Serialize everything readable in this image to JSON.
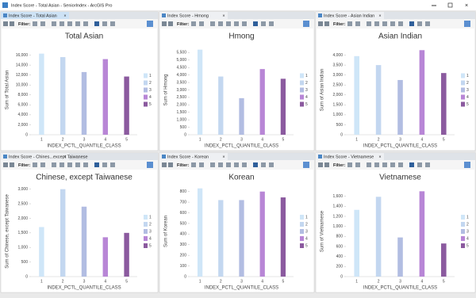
{
  "window": {
    "title": "Index Score - Total Asian - SeniorIndex - ArcGIS Pro"
  },
  "toolbar": {
    "filter_label": "Filter:"
  },
  "panes": [
    {
      "tab": "Index Score - Total Asian"
    },
    {
      "tab": "Index Score - Hmong"
    },
    {
      "tab": "Index Score - Asian Indian"
    },
    {
      "tab": "Index Score - Chines...except Taiwanese"
    },
    {
      "tab": "Index Score - Korean"
    },
    {
      "tab": "Index Score - Vietnamese"
    }
  ],
  "chart_data": [
    {
      "type": "bar",
      "title": "Total Asian",
      "x_label": "INDEX_PCTL_QUANTILE_CLASS",
      "y_label": "Sum of Total Asian",
      "categories": [
        "1",
        "2",
        "3",
        "4",
        "5"
      ],
      "values": [
        16300,
        15600,
        12600,
        15200,
        11700
      ],
      "colors": [
        "#cfe6f8",
        "#c3d7f0",
        "#b2bde2",
        "#b886d6",
        "#8b5a9f"
      ],
      "ylim": [
        0,
        18000
      ],
      "yticks": [
        0,
        {
          "value": 2000,
          "label": "2,000"
        },
        {
          "value": 4000,
          "label": "4,000"
        },
        {
          "value": 6000,
          "label": "6,000"
        },
        {
          "value": 8000,
          "label": "8,000"
        },
        {
          "value": 10000,
          "label": "10,000"
        },
        {
          "value": 12000,
          "label": "12,000"
        },
        {
          "value": 14000,
          "label": "14,000"
        },
        {
          "value": 16000,
          "label": "16,000"
        }
      ]
    },
    {
      "type": "bar",
      "title": "Hmong",
      "x_label": "INDEX_PCTL_QUANTILE_CLASS",
      "y_label": "Sum of Hmong",
      "categories": [
        "1",
        "2",
        "3",
        "4",
        "5"
      ],
      "values": [
        5700,
        3900,
        2450,
        4400,
        3750
      ],
      "colors": [
        "#cfe6f8",
        "#c3d7f0",
        "#b2bde2",
        "#b886d6",
        "#8b5a9f"
      ],
      "ylim": [
        0,
        6000
      ],
      "yticks": [
        0,
        500,
        {
          "value": 1000,
          "label": "1,000"
        },
        {
          "value": 1500,
          "label": "1,500"
        },
        {
          "value": 2000,
          "label": "2,000"
        },
        {
          "value": 2500,
          "label": "2,500"
        },
        {
          "value": 3000,
          "label": "3,000"
        },
        {
          "value": 3500,
          "label": "3,500"
        },
        {
          "value": 4000,
          "label": "4,000"
        },
        {
          "value": 4500,
          "label": "4,500"
        },
        {
          "value": 5000,
          "label": "5,000"
        },
        {
          "value": 5500,
          "label": "5,500"
        }
      ]
    },
    {
      "type": "bar",
      "title": "Asian Indian",
      "x_label": "INDEX_PCTL_QUANTILE_CLASS",
      "y_label": "Sum of Asian Indian",
      "categories": [
        "1",
        "2",
        "3",
        "4",
        "5"
      ],
      "values": [
        3950,
        3500,
        2750,
        4250,
        3100
      ],
      "colors": [
        "#cfe6f8",
        "#c3d7f0",
        "#b2bde2",
        "#b886d6",
        "#8b5a9f"
      ],
      "ylim": [
        0,
        4500
      ],
      "yticks": [
        0,
        500,
        {
          "value": 1000,
          "label": "1,000"
        },
        {
          "value": 1500,
          "label": "1,500"
        },
        {
          "value": 2000,
          "label": "2,000"
        },
        {
          "value": 2500,
          "label": "2,500"
        },
        {
          "value": 3000,
          "label": "3,000"
        },
        {
          "value": 3500,
          "label": "3,500"
        },
        {
          "value": 4000,
          "label": "4,000"
        }
      ]
    },
    {
      "type": "bar",
      "title": "Chinese, except Taiwanese",
      "x_label": "INDEX_PCTL_QUANTILE_CLASS",
      "y_label": "Sum of Chinese, except Taiwanese",
      "categories": [
        "1",
        "2",
        "3",
        "4",
        "5"
      ],
      "values": [
        1700,
        3000,
        2400,
        1350,
        1500
      ],
      "colors": [
        "#cfe6f8",
        "#c3d7f0",
        "#b2bde2",
        "#b886d6",
        "#8b5a9f"
      ],
      "ylim": [
        0,
        3100
      ],
      "yticks": [
        0,
        500,
        {
          "value": 1000,
          "label": "1,000"
        },
        {
          "value": 1500,
          "label": "1,500"
        },
        {
          "value": 2000,
          "label": "2,000"
        },
        {
          "value": 2500,
          "label": "2,500"
        },
        {
          "value": 3000,
          "label": "3,000"
        }
      ]
    },
    {
      "type": "bar",
      "title": "Korean",
      "x_label": "INDEX_PCTL_QUANTILE_CLASS",
      "y_label": "Sum of Korean",
      "categories": [
        "1",
        "2",
        "3",
        "4",
        "5"
      ],
      "values": [
        830,
        720,
        720,
        800,
        745
      ],
      "colors": [
        "#cfe6f8",
        "#c3d7f0",
        "#b2bde2",
        "#b886d6",
        "#8b5a9f"
      ],
      "ylim": [
        0,
        850
      ],
      "yticks": [
        0,
        100,
        200,
        300,
        400,
        500,
        600,
        700,
        800
      ]
    },
    {
      "type": "bar",
      "title": "Vietnamese",
      "x_label": "INDEX_PCTL_QUANTILE_CLASS",
      "y_label": "Sum of Vietnamese",
      "categories": [
        "1",
        "2",
        "3",
        "4",
        "5"
      ],
      "values": [
        1330,
        1590,
        780,
        1700,
        660
      ],
      "colors": [
        "#cfe6f8",
        "#c3d7f0",
        "#b2bde2",
        "#b886d6",
        "#8b5a9f"
      ],
      "ylim": [
        0,
        1800
      ],
      "yticks": [
        0,
        200,
        400,
        600,
        800,
        {
          "value": 1000,
          "label": "1,000"
        },
        {
          "value": 1200,
          "label": "1,200"
        },
        {
          "value": 1400,
          "label": "1,400"
        },
        {
          "value": 1600,
          "label": "1,600"
        }
      ]
    }
  ]
}
